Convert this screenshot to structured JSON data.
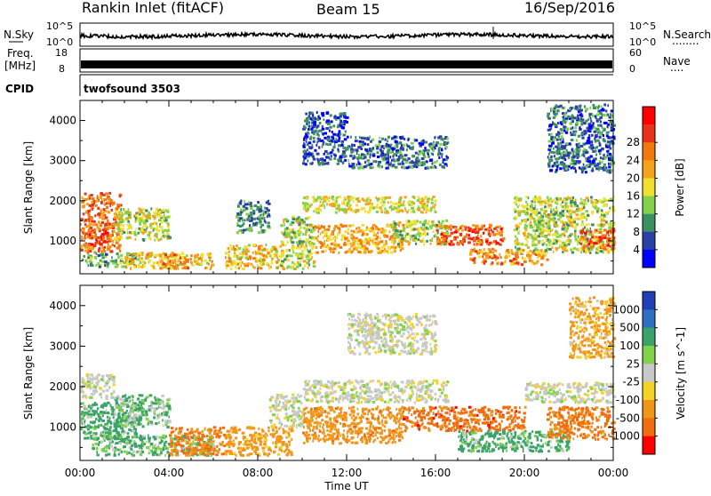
{
  "header": {
    "station": "Rankin Inlet (fitACF)",
    "beam": "Beam 15",
    "date": "16/Sep/2016"
  },
  "nsky_panel": {
    "label": "N.Sky",
    "tick_top": "10^5",
    "tick_bottom": "10^0",
    "right_tick_top": "10^5",
    "right_tick_bottom": "10^0",
    "right_label": "N.Search",
    "right_label_dots": "........"
  },
  "freq_panel": {
    "label_line1": "Freq.",
    "label_line2": "[MHz]",
    "tick_top": "18",
    "tick_bottom": "8",
    "right_tick_top": "60",
    "right_tick_bottom": "0",
    "right_label": "Nave",
    "right_label_dots": "...."
  },
  "cpid_panel": {
    "label": "CPID",
    "value": "twofsound 3503"
  },
  "x_axis": {
    "label": "Time UT",
    "ticks": [
      "00:00",
      "04:00",
      "08:00",
      "12:00",
      "16:00",
      "20:00",
      "00:00"
    ]
  },
  "chart_data": [
    {
      "type": "heatmap",
      "name": "power",
      "ylabel": "Slant Range [km]",
      "yticks": [
        "1000",
        "2000",
        "3000",
        "4000"
      ],
      "ylim": [
        180,
        4500
      ],
      "xlim": [
        0,
        24
      ],
      "colorbar": {
        "label": "Power [dB]",
        "ticks": [
          "4",
          "8",
          "12",
          "16",
          "20",
          "24",
          "28"
        ],
        "colors": [
          "#0000ff",
          "#2b3fa6",
          "#3c8f62",
          "#7fd24a",
          "#f2e030",
          "#f5a21d",
          "#f07a10",
          "#e8331b",
          "#ff0000"
        ]
      },
      "regions": [
        {
          "t0": 0.0,
          "t1": 1.8,
          "r0": 700,
          "r1": 2200,
          "value": 24
        },
        {
          "t0": 0.3,
          "t1": 1.2,
          "r0": 900,
          "r1": 1300,
          "value": 28
        },
        {
          "t0": 0.0,
          "t1": 2.5,
          "r0": 350,
          "r1": 700,
          "value": 10
        },
        {
          "t0": 1.5,
          "t1": 4.0,
          "r0": 1000,
          "r1": 1800,
          "value": 14
        },
        {
          "t0": 2.0,
          "t1": 6.0,
          "r0": 300,
          "r1": 700,
          "value": 18
        },
        {
          "t0": 3.5,
          "t1": 4.8,
          "r0": 300,
          "r1": 650,
          "value": 22
        },
        {
          "t0": 6.5,
          "t1": 9.0,
          "r0": 300,
          "r1": 900,
          "value": 18
        },
        {
          "t0": 7.0,
          "t1": 8.5,
          "r0": 1200,
          "r1": 2000,
          "value": 8
        },
        {
          "t0": 9.0,
          "t1": 10.5,
          "r0": 300,
          "r1": 1600,
          "value": 14
        },
        {
          "t0": 10.0,
          "t1": 16.0,
          "r0": 1700,
          "r1": 2100,
          "value": 16
        },
        {
          "t0": 10.5,
          "t1": 14.5,
          "r0": 700,
          "r1": 1400,
          "value": 20
        },
        {
          "t0": 14.0,
          "t1": 16.5,
          "r0": 900,
          "r1": 1500,
          "value": 14
        },
        {
          "t0": 16.0,
          "t1": 19.0,
          "r0": 900,
          "r1": 1400,
          "value": 26
        },
        {
          "t0": 17.5,
          "t1": 21.0,
          "r0": 400,
          "r1": 800,
          "value": 22
        },
        {
          "t0": 19.5,
          "t1": 24.0,
          "r0": 700,
          "r1": 2100,
          "value": 14
        },
        {
          "t0": 22.5,
          "t1": 24.0,
          "r0": 800,
          "r1": 1300,
          "value": 26
        },
        {
          "t0": 10.0,
          "t1": 12.0,
          "r0": 2900,
          "r1": 4200,
          "value": 4
        },
        {
          "t0": 12.0,
          "t1": 16.5,
          "r0": 2800,
          "r1": 3600,
          "value": 6
        },
        {
          "t0": 21.0,
          "t1": 24.0,
          "r0": 2700,
          "r1": 4400,
          "value": 6
        }
      ]
    },
    {
      "type": "heatmap",
      "name": "velocity",
      "ylabel": "Slant Range [km]",
      "yticks": [
        "1000",
        "2000",
        "3000",
        "4000"
      ],
      "ylim": [
        180,
        4500
      ],
      "xlim": [
        0,
        24
      ],
      "colorbar": {
        "label": "Velocity [m s^-1]",
        "ticks": [
          "1000",
          "500",
          "100",
          "25",
          "-25",
          "-100",
          "-500",
          "-1000"
        ],
        "colors": [
          "#2140b8",
          "#2e6fc4",
          "#3ba36a",
          "#7fd24a",
          "#c8c8c8",
          "#f5d228",
          "#f0961a",
          "#f06e10",
          "#ff0000"
        ]
      },
      "regions": [
        {
          "t0": 0.0,
          "t1": 1.5,
          "r0": 1700,
          "r1": 2300,
          "value": 0
        },
        {
          "t0": 0.0,
          "t1": 2.5,
          "r0": 700,
          "r1": 1600,
          "value": 100
        },
        {
          "t0": 1.5,
          "t1": 4.0,
          "r0": 1000,
          "r1": 1800,
          "value": 60
        },
        {
          "t0": 0.5,
          "t1": 6.0,
          "r0": 300,
          "r1": 800,
          "value": 80
        },
        {
          "t0": 4.0,
          "t1": 6.5,
          "r0": 300,
          "r1": 1000,
          "value": -300
        },
        {
          "t0": 6.5,
          "t1": 9.5,
          "r0": 300,
          "r1": 1000,
          "value": -150
        },
        {
          "t0": 8.5,
          "t1": 10.0,
          "r0": 1000,
          "r1": 1800,
          "value": 0
        },
        {
          "t0": 10.0,
          "t1": 16.5,
          "r0": 1600,
          "r1": 2150,
          "value": 0
        },
        {
          "t0": 10.0,
          "t1": 14.5,
          "r0": 600,
          "r1": 1500,
          "value": -200
        },
        {
          "t0": 14.5,
          "t1": 20.0,
          "r0": 900,
          "r1": 1500,
          "value": -500
        },
        {
          "t0": 17.0,
          "t1": 22.0,
          "r0": 400,
          "r1": 900,
          "value": 100
        },
        {
          "t0": 20.0,
          "t1": 24.0,
          "r0": 1600,
          "r1": 2100,
          "value": 0
        },
        {
          "t0": 21.0,
          "t1": 24.0,
          "r0": 700,
          "r1": 1500,
          "value": -400
        },
        {
          "t0": 12.0,
          "t1": 16.0,
          "r0": 2800,
          "r1": 3800,
          "value": 0
        },
        {
          "t0": 22.0,
          "t1": 24.0,
          "r0": 2700,
          "r1": 4200,
          "value": -100
        }
      ]
    }
  ]
}
